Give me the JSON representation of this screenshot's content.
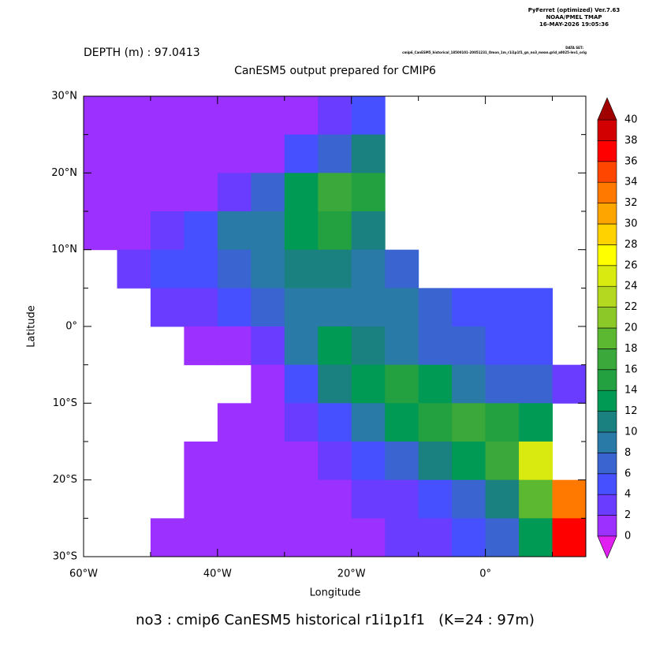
{
  "header": {
    "program": "PyFerret (optimized) Ver.7.63",
    "org": "NOAA/PMEL TMAP",
    "date": "16-MAY-2026 19:05:36",
    "dataset_label": "DATA SET:",
    "dataset": "cmip6_CanESM5_historical_18500101-20051231_Omon_1m_r1i1p1f1_gn_no3_mean.grid_a0025-lev1_orig"
  },
  "chart_data": {
    "type": "heatmap",
    "depth": "DEPTH (m) : 97.0413",
    "title": "CanESM5 output prepared for CMIP6",
    "xlabel": "Longitude",
    "ylabel": "Latitude",
    "footer": "no3 : cmip6 CanESM5 historical r1i1p1f1   (K=24 : 97m)",
    "xlim": [
      -60,
      15
    ],
    "ylim": [
      -30,
      30
    ],
    "xticks": [
      {
        "value": -60,
        "label": "60°W"
      },
      {
        "value": -40,
        "label": "40°W"
      },
      {
        "value": -20,
        "label": "20°W"
      },
      {
        "value": 0,
        "label": "0°"
      }
    ],
    "xminorticks": [
      -50,
      -30,
      -10,
      10
    ],
    "yticks": [
      {
        "value": 30,
        "label": "30°N"
      },
      {
        "value": 20,
        "label": "20°N"
      },
      {
        "value": 10,
        "label": "10°N"
      },
      {
        "value": 0,
        "label": "0°"
      },
      {
        "value": -10,
        "label": "10°S"
      },
      {
        "value": -20,
        "label": "20°S"
      },
      {
        "value": -30,
        "label": "30°S"
      }
    ],
    "yminorticks": [
      25,
      15,
      5,
      -5,
      -15,
      -25
    ],
    "cell_size": 5,
    "x": [
      -57.5,
      -52.5,
      -47.5,
      -42.5,
      -37.5,
      -32.5,
      -27.5,
      -22.5,
      -17.5,
      -12.5,
      -7.5,
      -2.5,
      2.5,
      7.5,
      12.5
    ],
    "y": [
      27.5,
      22.5,
      17.5,
      12.5,
      7.5,
      2.5,
      -2.5,
      -7.5,
      -12.5,
      -17.5,
      -22.5,
      -27.5
    ],
    "values": [
      [
        1,
        1,
        1,
        1,
        1,
        1,
        1,
        2,
        5,
        null,
        null,
        null,
        null,
        null,
        null
      ],
      [
        1,
        1,
        1,
        1,
        1,
        1,
        4,
        6,
        10,
        null,
        null,
        null,
        null,
        null,
        null
      ],
      [
        1,
        1,
        1,
        1,
        3,
        6,
        12,
        17,
        14,
        null,
        null,
        null,
        null,
        null,
        null
      ],
      [
        1,
        1,
        3,
        5,
        8,
        9,
        13,
        14,
        10,
        null,
        null,
        null,
        null,
        null,
        null
      ],
      [
        null,
        2,
        4,
        5,
        7,
        9,
        11,
        11,
        9,
        6,
        null,
        null,
        null,
        null,
        null
      ],
      [
        null,
        null,
        2,
        2,
        4,
        7,
        9,
        9,
        9,
        8,
        7,
        5,
        4,
        4,
        null
      ],
      [
        null,
        null,
        null,
        1,
        1,
        3,
        8,
        12,
        10,
        8,
        7,
        6,
        5,
        4,
        null
      ],
      [
        null,
        null,
        null,
        null,
        null,
        1,
        4,
        10,
        13,
        14,
        12,
        9,
        7,
        6,
        3
      ],
      [
        null,
        null,
        null,
        null,
        1,
        1,
        2,
        5,
        8,
        12,
        15,
        16,
        14,
        13,
        null
      ],
      [
        null,
        null,
        null,
        1,
        1,
        1,
        1,
        2,
        4,
        7,
        10,
        13,
        17,
        24,
        null
      ],
      [
        null,
        null,
        null,
        1,
        1,
        1,
        1,
        1,
        2,
        3,
        5,
        7,
        10,
        18,
        32
      ],
      [
        null,
        null,
        1,
        1,
        1,
        1,
        1,
        1,
        1,
        2,
        3,
        4,
        6,
        12,
        36
      ]
    ],
    "levels": [
      0,
      2,
      4,
      6,
      8,
      10,
      12,
      14,
      16,
      18,
      20,
      22,
      24,
      26,
      28,
      30,
      32,
      34,
      36,
      38,
      40
    ],
    "colors": [
      "#9b30ff",
      "#6a3cff",
      "#4650ff",
      "#3a64d0",
      "#2a7aa8",
      "#1a8080",
      "#009a55",
      "#23a040",
      "#3aa83a",
      "#5cb830",
      "#8cc828",
      "#b4d820",
      "#d8ea10",
      "#ffff00",
      "#ffd200",
      "#ffa500",
      "#ff7800",
      "#ff4600",
      "#ff0000",
      "#d20000"
    ],
    "under_color": "#e020f0",
    "over_color": "#a00000"
  }
}
